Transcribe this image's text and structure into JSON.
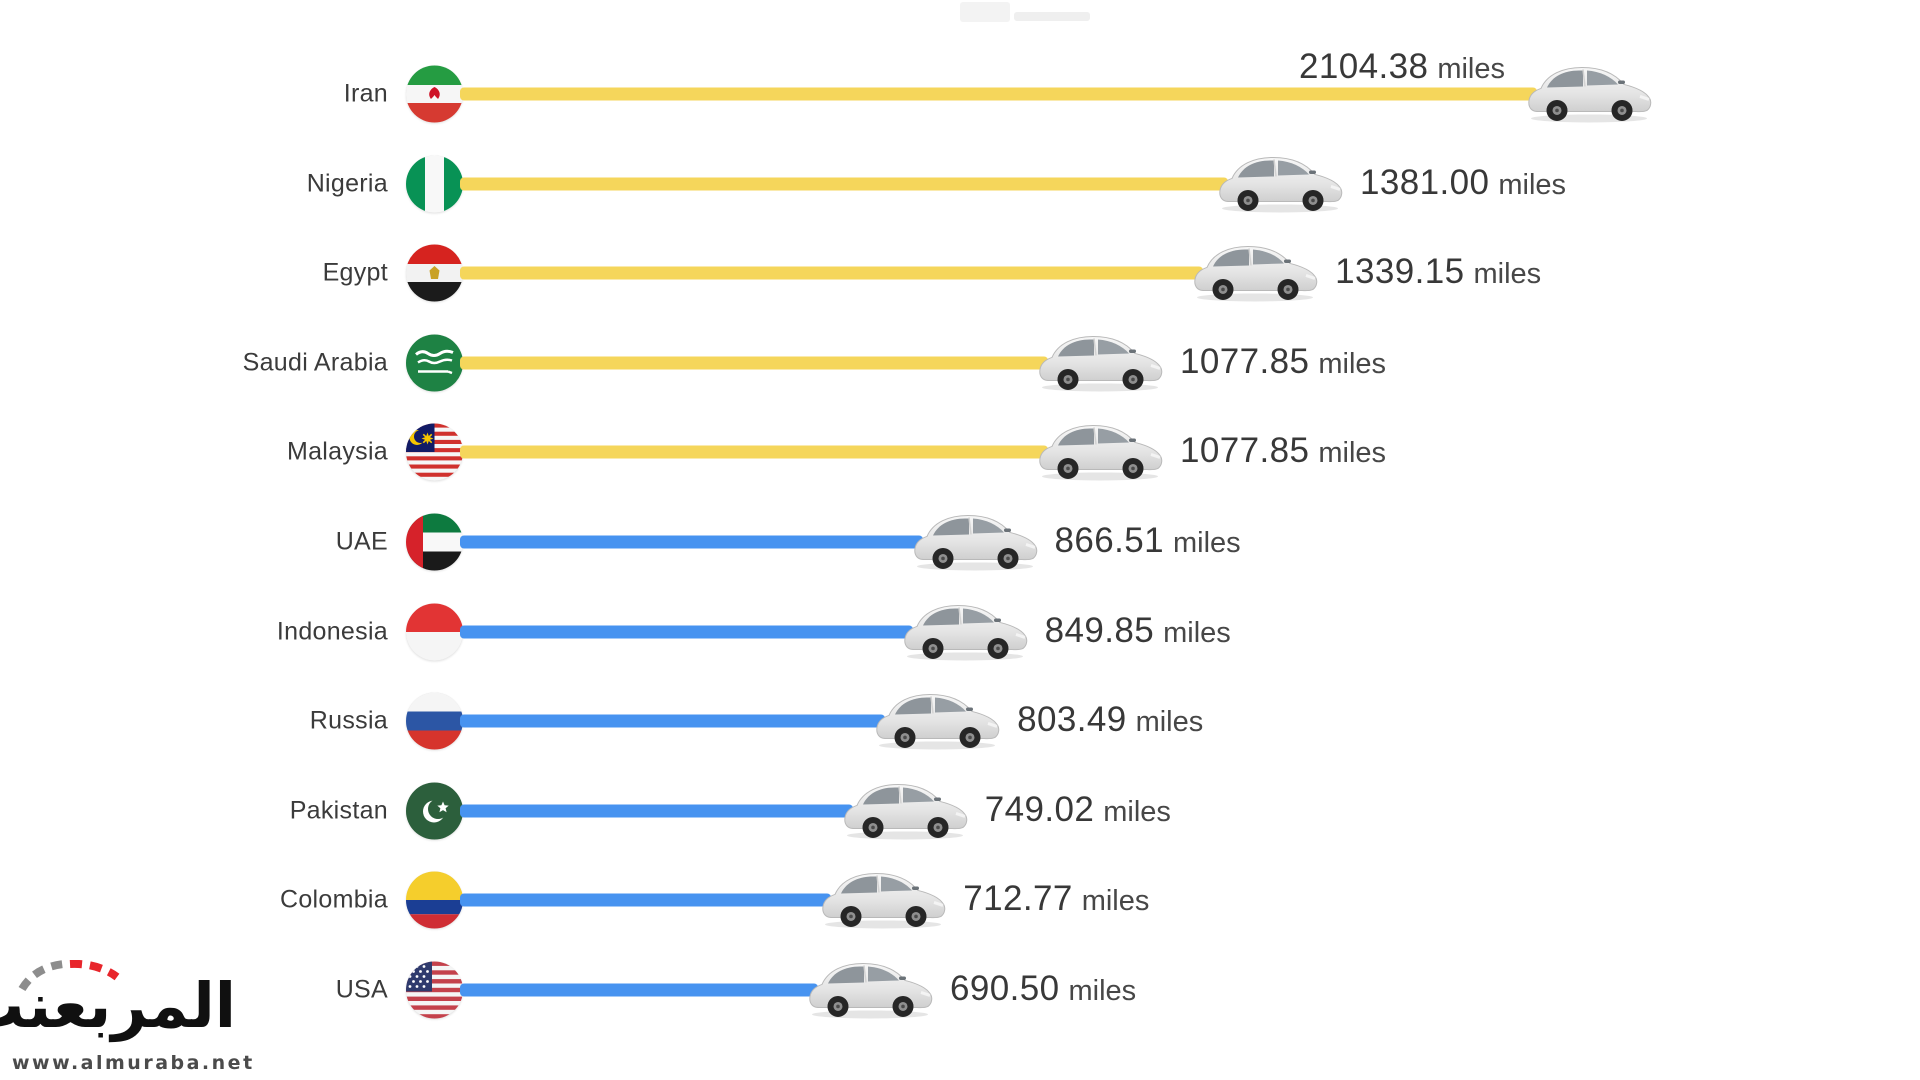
{
  "chart_data": {
    "type": "bar",
    "orientation": "horizontal",
    "title": "",
    "unit": "miles",
    "categories": [
      "Iran",
      "Nigeria",
      "Egypt",
      "Saudi Arabia",
      "Malaysia",
      "UAE",
      "Indonesia",
      "Russia",
      "Pakistan",
      "Colombia",
      "USA"
    ],
    "values": [
      2104.38,
      1381.0,
      1339.15,
      1077.85,
      1077.85,
      866.51,
      849.85,
      803.49,
      749.02,
      712.77,
      690.5
    ],
    "value_labels": [
      "2104.38 miles",
      "1381.00 miles",
      "1339.15 miles",
      "1077.85 miles",
      "1077.85 miles",
      "866.51 miles",
      "849.85 miles",
      "803.49 miles",
      "749.02 miles",
      "712.77 miles",
      "690.50 miles"
    ],
    "bar_color_groups": {
      "yellow_rows": [
        "Iran",
        "Nigeria",
        "Egypt",
        "Saudi Arabia",
        "Malaysia"
      ],
      "blue_rows": [
        "UAE",
        "Indonesia",
        "Russia",
        "Pakistan",
        "Colombia",
        "USA"
      ]
    },
    "legend": "none",
    "grid": false,
    "xlim": [
      0,
      2200
    ]
  },
  "rows": [
    {
      "country": "Iran",
      "value": "2104.38",
      "unit": "miles",
      "bar_color": "yellow",
      "value_position": "above"
    },
    {
      "country": "Nigeria",
      "value": "1381.00",
      "unit": "miles",
      "bar_color": "yellow",
      "value_position": "right"
    },
    {
      "country": "Egypt",
      "value": "1339.15",
      "unit": "miles",
      "bar_color": "yellow",
      "value_position": "right"
    },
    {
      "country": "Saudi Arabia",
      "value": "1077.85",
      "unit": "miles",
      "bar_color": "yellow",
      "value_position": "right"
    },
    {
      "country": "Malaysia",
      "value": "1077.85",
      "unit": "miles",
      "bar_color": "yellow",
      "value_position": "right"
    },
    {
      "country": "UAE",
      "value": "866.51",
      "unit": "miles",
      "bar_color": "blue",
      "value_position": "right"
    },
    {
      "country": "Indonesia",
      "value": "849.85",
      "unit": "miles",
      "bar_color": "blue",
      "value_position": "right"
    },
    {
      "country": "Russia",
      "value": "803.49",
      "unit": "miles",
      "bar_color": "blue",
      "value_position": "right"
    },
    {
      "country": "Pakistan",
      "value": "749.02",
      "unit": "miles",
      "bar_color": "blue",
      "value_position": "right"
    },
    {
      "country": "Colombia",
      "value": "712.77",
      "unit": "miles",
      "bar_color": "blue",
      "value_position": "right"
    },
    {
      "country": "USA",
      "value": "690.50",
      "unit": "miles",
      "bar_color": "blue",
      "value_position": "right"
    }
  ],
  "colors": {
    "bar_yellow": "#F5D65B",
    "bar_blue": "#4793F0",
    "text_dark": "#3B3B3B",
    "logo_red": "#E8252B",
    "logo_gray": "#8D8D8D"
  },
  "watermark": {
    "site_name_ar": "المربعنت",
    "site_url": "www.almuraba.net"
  }
}
